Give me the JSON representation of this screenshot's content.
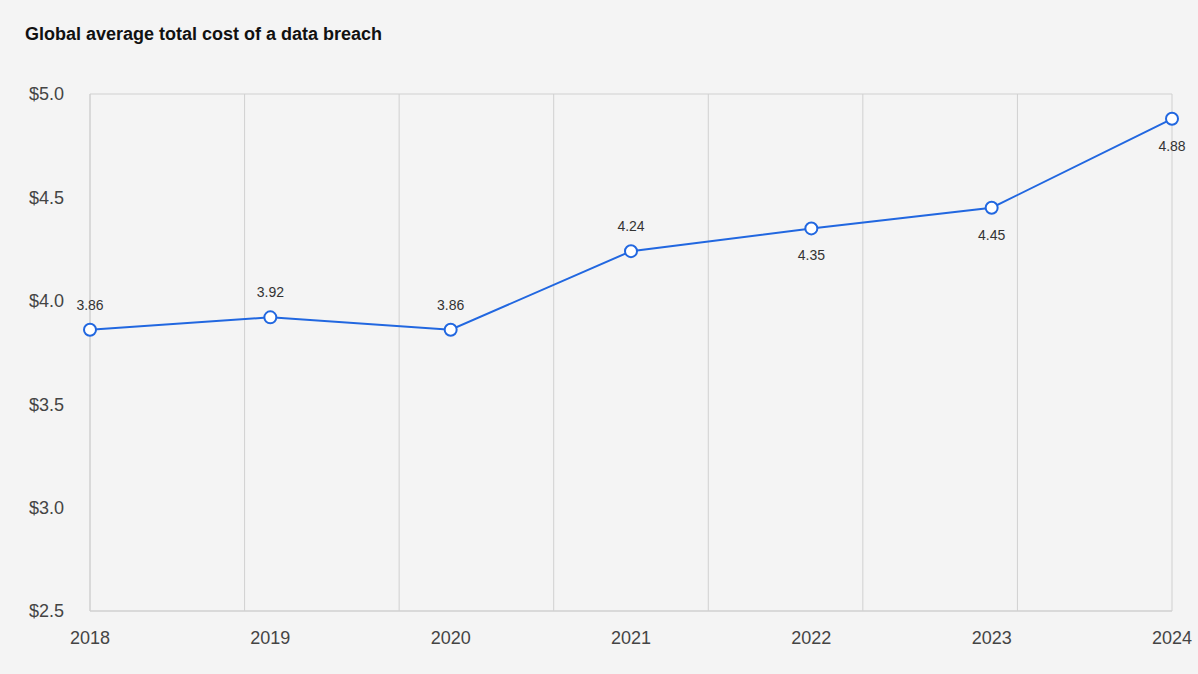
{
  "chart_data": {
    "type": "line",
    "title": "Global average total cost of a data breach",
    "categories": [
      "2018",
      "2019",
      "2020",
      "2021",
      "2022",
      "2023",
      "2024"
    ],
    "values": [
      3.86,
      3.92,
      3.86,
      4.24,
      4.35,
      4.45,
      4.88
    ],
    "color": "#2167e0",
    "marker": "circle",
    "ylim": [
      2.5,
      5.0
    ],
    "yticks": [
      {
        "value": 2.5,
        "label": "$2.5"
      },
      {
        "value": 3.0,
        "label": "$3.0"
      },
      {
        "value": 3.5,
        "label": "$3.5"
      },
      {
        "value": 4.0,
        "label": "$4.0"
      },
      {
        "value": 4.5,
        "label": "$4.5"
      },
      {
        "value": 5.0,
        "label": "$5.0"
      }
    ],
    "grid": true,
    "data_labels": true
  }
}
